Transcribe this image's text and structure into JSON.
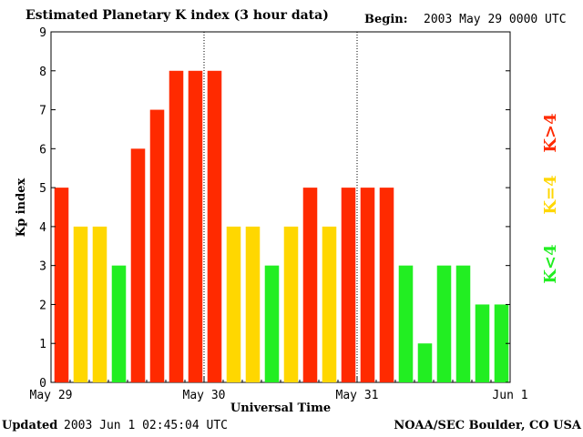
{
  "header": {
    "title": "Estimated Planetary K index (3 hour data)",
    "begin_label": "Begin:",
    "begin_value": "2003 May 29 0000 UTC"
  },
  "footer": {
    "updated_label": "Updated",
    "updated_value": "2003 Jun  1 02:45:04 UTC",
    "org": "NOAA/SEC Boulder, CO USA"
  },
  "legend": [
    {
      "label": "K>4",
      "color": "#ff2a00"
    },
    {
      "label": "K=4",
      "color": "#ffd700"
    },
    {
      "label": "K<4",
      "color": "#22ee22"
    }
  ],
  "chart_data": {
    "type": "bar",
    "title": "Estimated Planetary K index (3 hour data)",
    "xlabel": "Universal Time",
    "ylabel": "Kp index",
    "ylim": [
      0,
      9
    ],
    "yticks": [
      0,
      1,
      2,
      3,
      4,
      5,
      6,
      7,
      8,
      9
    ],
    "xtick_labels": [
      "May 29",
      "May 30",
      "May 31",
      "Jun 1"
    ],
    "day_separators": [
      "May 30",
      "May 31"
    ],
    "interval_hours": 3,
    "values": [
      5,
      4,
      4,
      3,
      6,
      7,
      8,
      8,
      8,
      4,
      4,
      3,
      4,
      5,
      4,
      5,
      5,
      5,
      3,
      1,
      3,
      3,
      2,
      2
    ],
    "colors": {
      "high": "#ff2a00",
      "equal": "#ffd700",
      "low": "#22ee22"
    }
  }
}
